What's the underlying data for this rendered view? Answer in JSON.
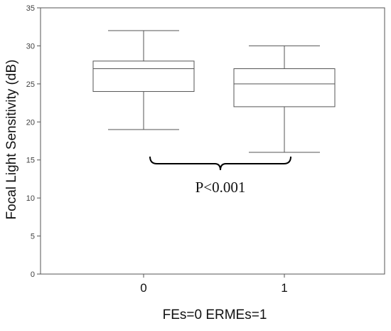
{
  "chart_data": {
    "type": "box",
    "title": "",
    "xlabel": "FEs=0 ERMEs=1",
    "ylabel": "Focal Light Sensitivity (dB)",
    "ylim": [
      0,
      35
    ],
    "yticks": [
      "0",
      "5",
      "10",
      "15",
      "20",
      "25",
      "30",
      "35"
    ],
    "categories": [
      "0",
      "1"
    ],
    "boxes": [
      {
        "category": "0",
        "min": 19,
        "q1": 24,
        "median": 27,
        "q3": 28,
        "max": 32
      },
      {
        "category": "1",
        "min": 16,
        "q1": 22,
        "median": 25,
        "q3": 27,
        "max": 30
      }
    ],
    "annotation": {
      "text": "P<0.001",
      "bracket_y": 14.5,
      "from_category": "0",
      "to_category": "1"
    },
    "grid": false,
    "legend": "none",
    "colors": {
      "axis": "#555555",
      "box": "#555555",
      "bracket": "#000000",
      "text": "#111111"
    }
  }
}
